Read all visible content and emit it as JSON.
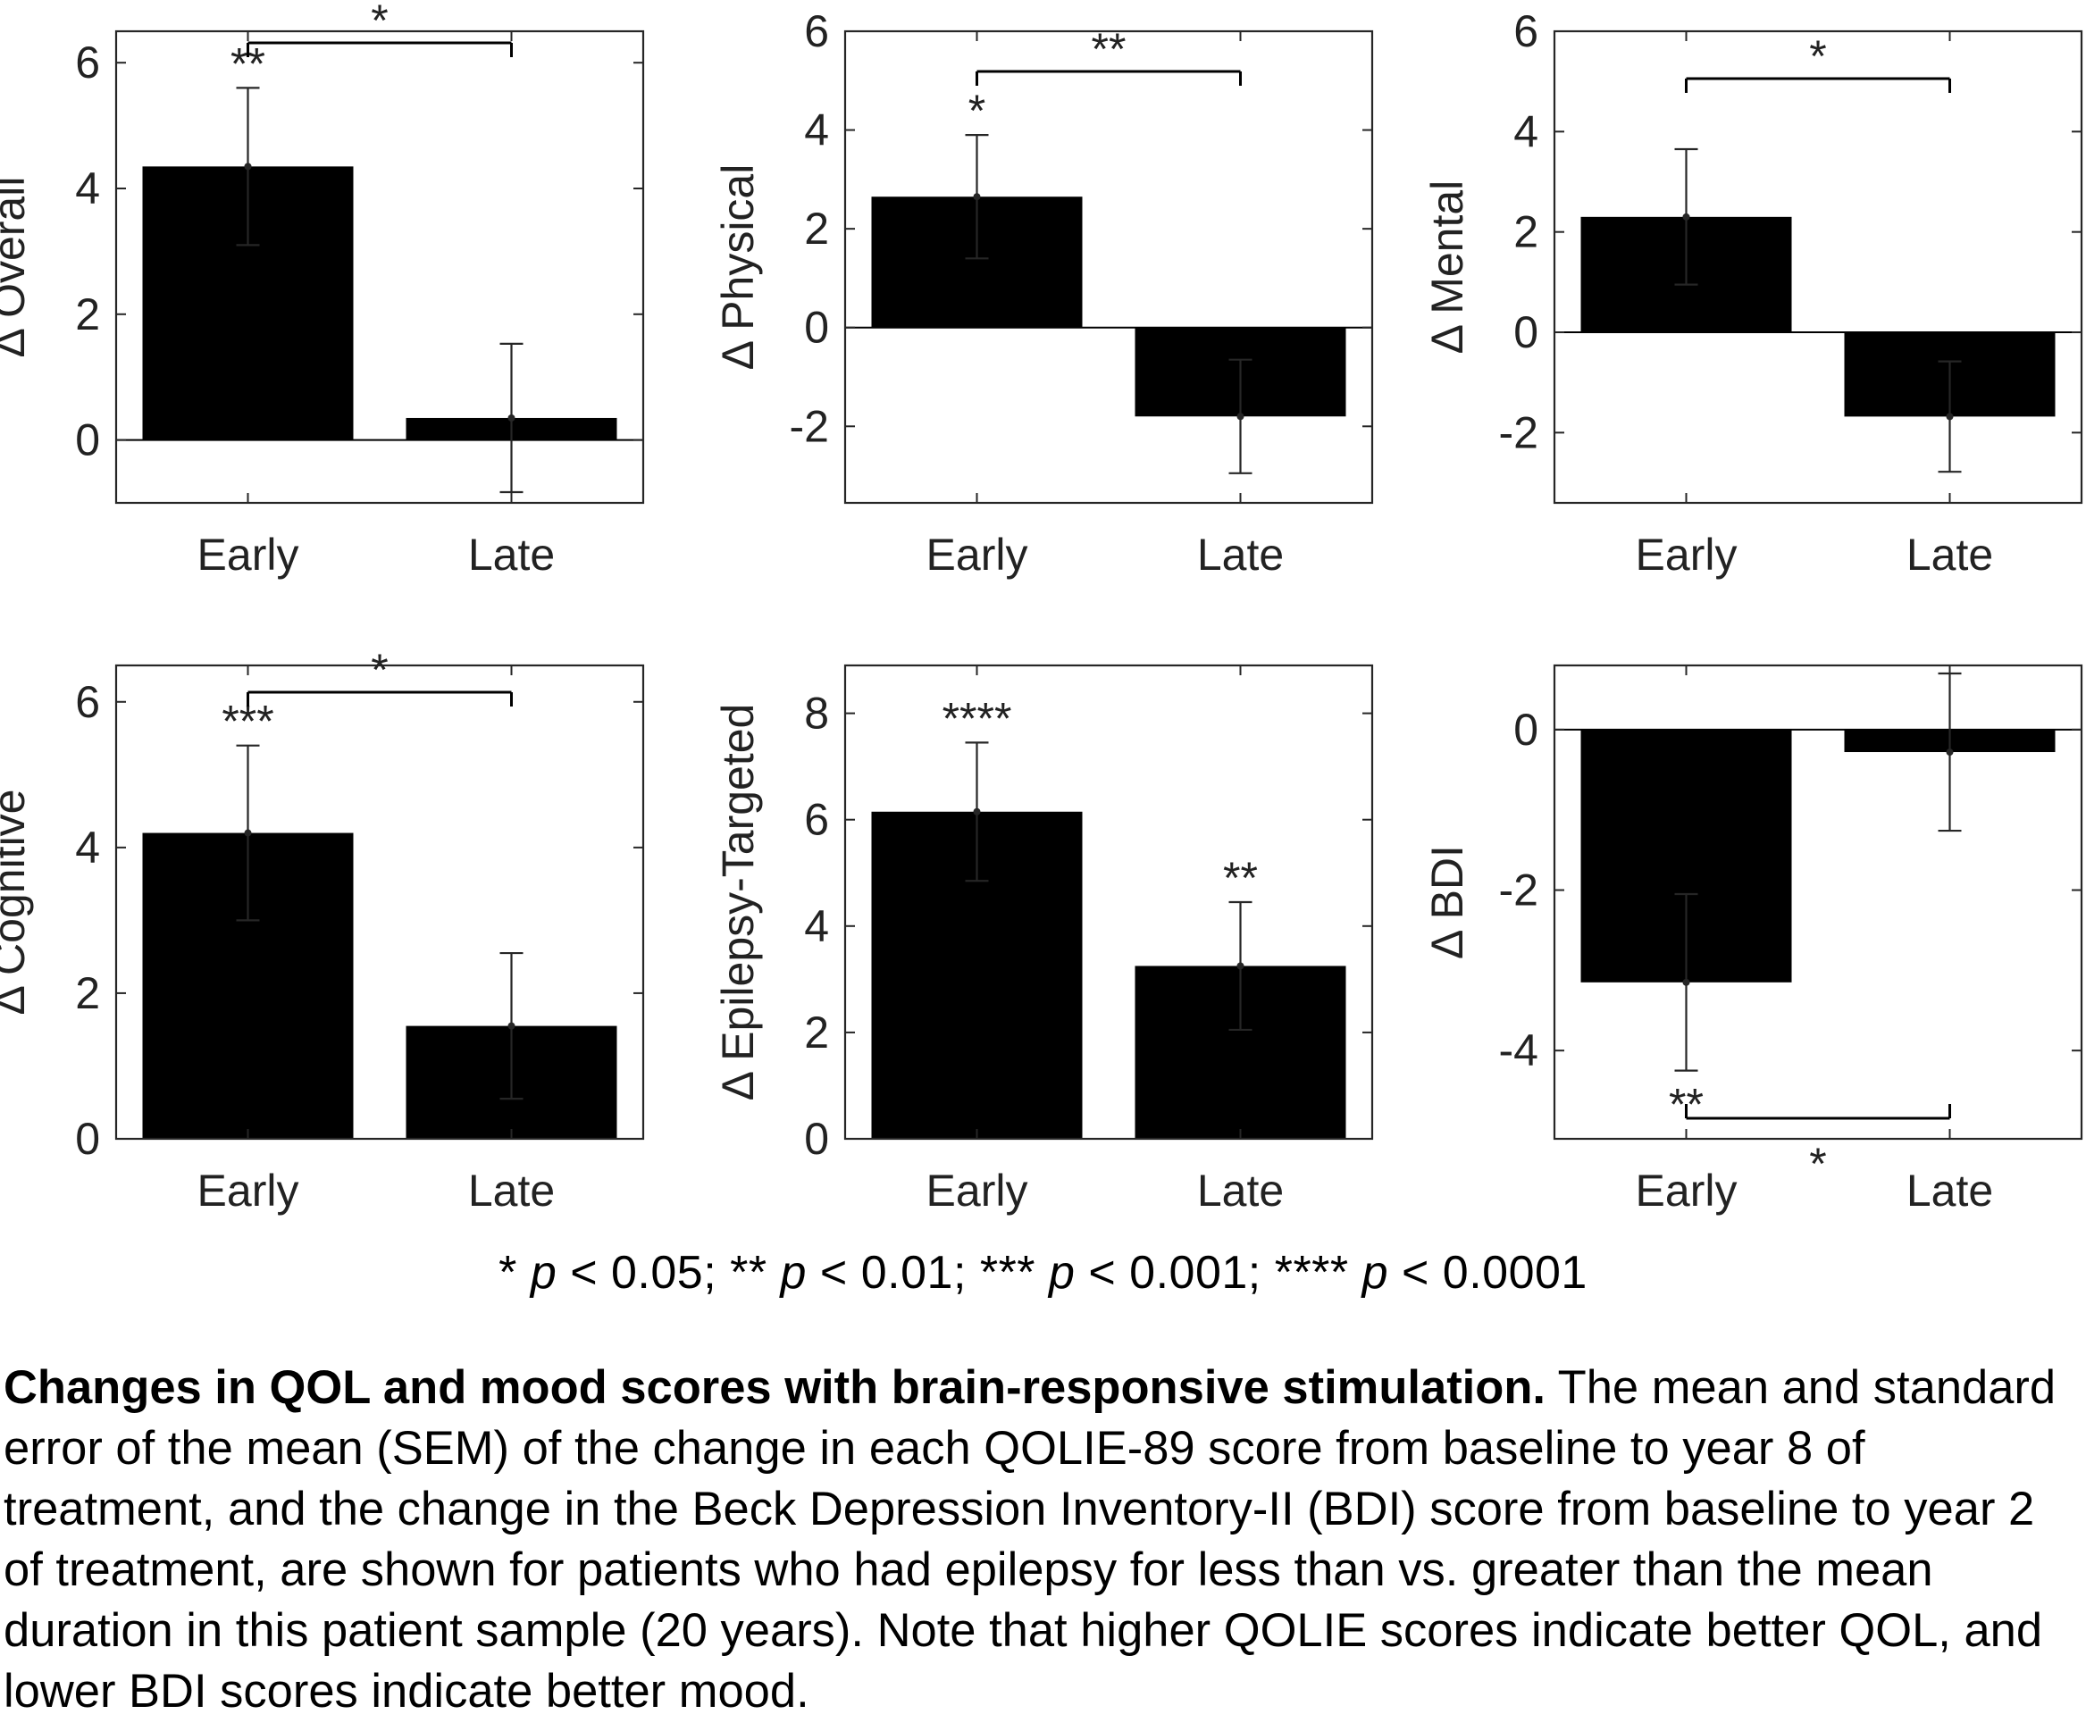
{
  "chart_data": [
    {
      "type": "bar",
      "title": "",
      "ylabel": "Δ Overall",
      "xlabel": "",
      "categories": [
        "Early",
        "Late"
      ],
      "values": [
        4.35,
        0.35
      ],
      "errors": [
        1.25,
        1.18
      ],
      "ylim": [
        -1.0,
        6.5
      ],
      "yticks": [
        0,
        2,
        4,
        6
      ],
      "ytick_labels": [
        "0",
        "2",
        "4",
        "6"
      ],
      "bar_markers": [
        "**",
        ""
      ],
      "bracket": {
        "from": "Early",
        "to": "Late",
        "label": "*",
        "position": "above"
      },
      "color": "#000000"
    },
    {
      "type": "bar",
      "title": "",
      "ylabel": "Δ Physical",
      "xlabel": "",
      "categories": [
        "Early",
        "Late"
      ],
      "values": [
        2.65,
        -1.8
      ],
      "errors": [
        1.25,
        1.15
      ],
      "ylim": [
        -3.55,
        6.0
      ],
      "yticks": [
        -2,
        0,
        2,
        4,
        6
      ],
      "ytick_labels": [
        "-2",
        "0",
        "2",
        "4",
        "6"
      ],
      "bar_markers": [
        "*",
        ""
      ],
      "bracket": {
        "from": "Early",
        "to": "Late",
        "label": "**",
        "position": "above"
      },
      "color": "#000000"
    },
    {
      "type": "bar",
      "title": "",
      "ylabel": "Δ Mental",
      "xlabel": "",
      "categories": [
        "Early",
        "Late"
      ],
      "values": [
        2.3,
        -1.68
      ],
      "errors": [
        1.35,
        1.1
      ],
      "ylim": [
        -3.4,
        6.0
      ],
      "yticks": [
        -2,
        0,
        2,
        4,
        6
      ],
      "ytick_labels": [
        "-2",
        "0",
        "2",
        "4",
        "6"
      ],
      "bar_markers": [
        "",
        ""
      ],
      "bracket": {
        "from": "Early",
        "to": "Late",
        "label": "*",
        "position": "above"
      },
      "color": "#000000"
    },
    {
      "type": "bar",
      "title": "",
      "ylabel": "Δ Cognitive",
      "xlabel": "",
      "categories": [
        "Early",
        "Late"
      ],
      "values": [
        4.2,
        1.55
      ],
      "errors": [
        1.2,
        1.0
      ],
      "ylim": [
        0,
        6.5
      ],
      "yticks": [
        0,
        2,
        4,
        6
      ],
      "ytick_labels": [
        "0",
        "2",
        "4",
        "6"
      ],
      "bar_markers": [
        "***",
        ""
      ],
      "bracket": {
        "from": "Early",
        "to": "Late",
        "label": "*",
        "position": "above"
      },
      "color": "#000000"
    },
    {
      "type": "bar",
      "title": "",
      "ylabel": "Δ Epilepsy-Targeted",
      "xlabel": "",
      "categories": [
        "Early",
        "Late"
      ],
      "values": [
        6.15,
        3.25
      ],
      "errors": [
        1.3,
        1.2
      ],
      "ylim": [
        0,
        8.9
      ],
      "yticks": [
        0,
        2,
        4,
        6,
        8
      ],
      "ytick_labels": [
        "0",
        "2",
        "4",
        "6",
        "8"
      ],
      "bar_markers": [
        "****",
        "**"
      ],
      "bracket": null,
      "color": "#000000"
    },
    {
      "type": "bar",
      "title": "",
      "ylabel": "Δ BDI",
      "xlabel": "",
      "categories": [
        "Early",
        "Late"
      ],
      "values": [
        -3.15,
        -0.28
      ],
      "errors": [
        1.1,
        0.98
      ],
      "ylim": [
        -5.1,
        0.8
      ],
      "yticks": [
        -4,
        -2,
        0
      ],
      "ytick_labels": [
        "-4",
        "-2",
        "0"
      ],
      "bar_markers": [
        "**",
        ""
      ],
      "bracket": {
        "from": "Early",
        "to": "Late",
        "label": "*",
        "position": "below"
      },
      "color": "#000000"
    }
  ],
  "legend": {
    "t1": "* ",
    "p1": "p",
    "t2": " < 0.05;  ** ",
    "p2": "p",
    "t3": " < 0.01;  *** ",
    "p3": "p",
    "t4": " < 0.001;  **** ",
    "p4": "p",
    "t5": " < 0.0001"
  },
  "caption": {
    "lead": "Changes in QOL and mood scores with brain-responsive stimulation.",
    "body": " The mean and standard error of the mean (SEM) of the change in each QOLIE-89 score from baseline to year 8 of treatment, and the change in the Beck Depression Inventory-II (BDI) score from baseline to year 2 of treatment, are shown for patients who had epilepsy for less than vs. greater than the mean duration in this patient sample (20 years). Note that higher QOLIE scores indicate better QOL, and lower BDI scores indicate better mood."
  }
}
